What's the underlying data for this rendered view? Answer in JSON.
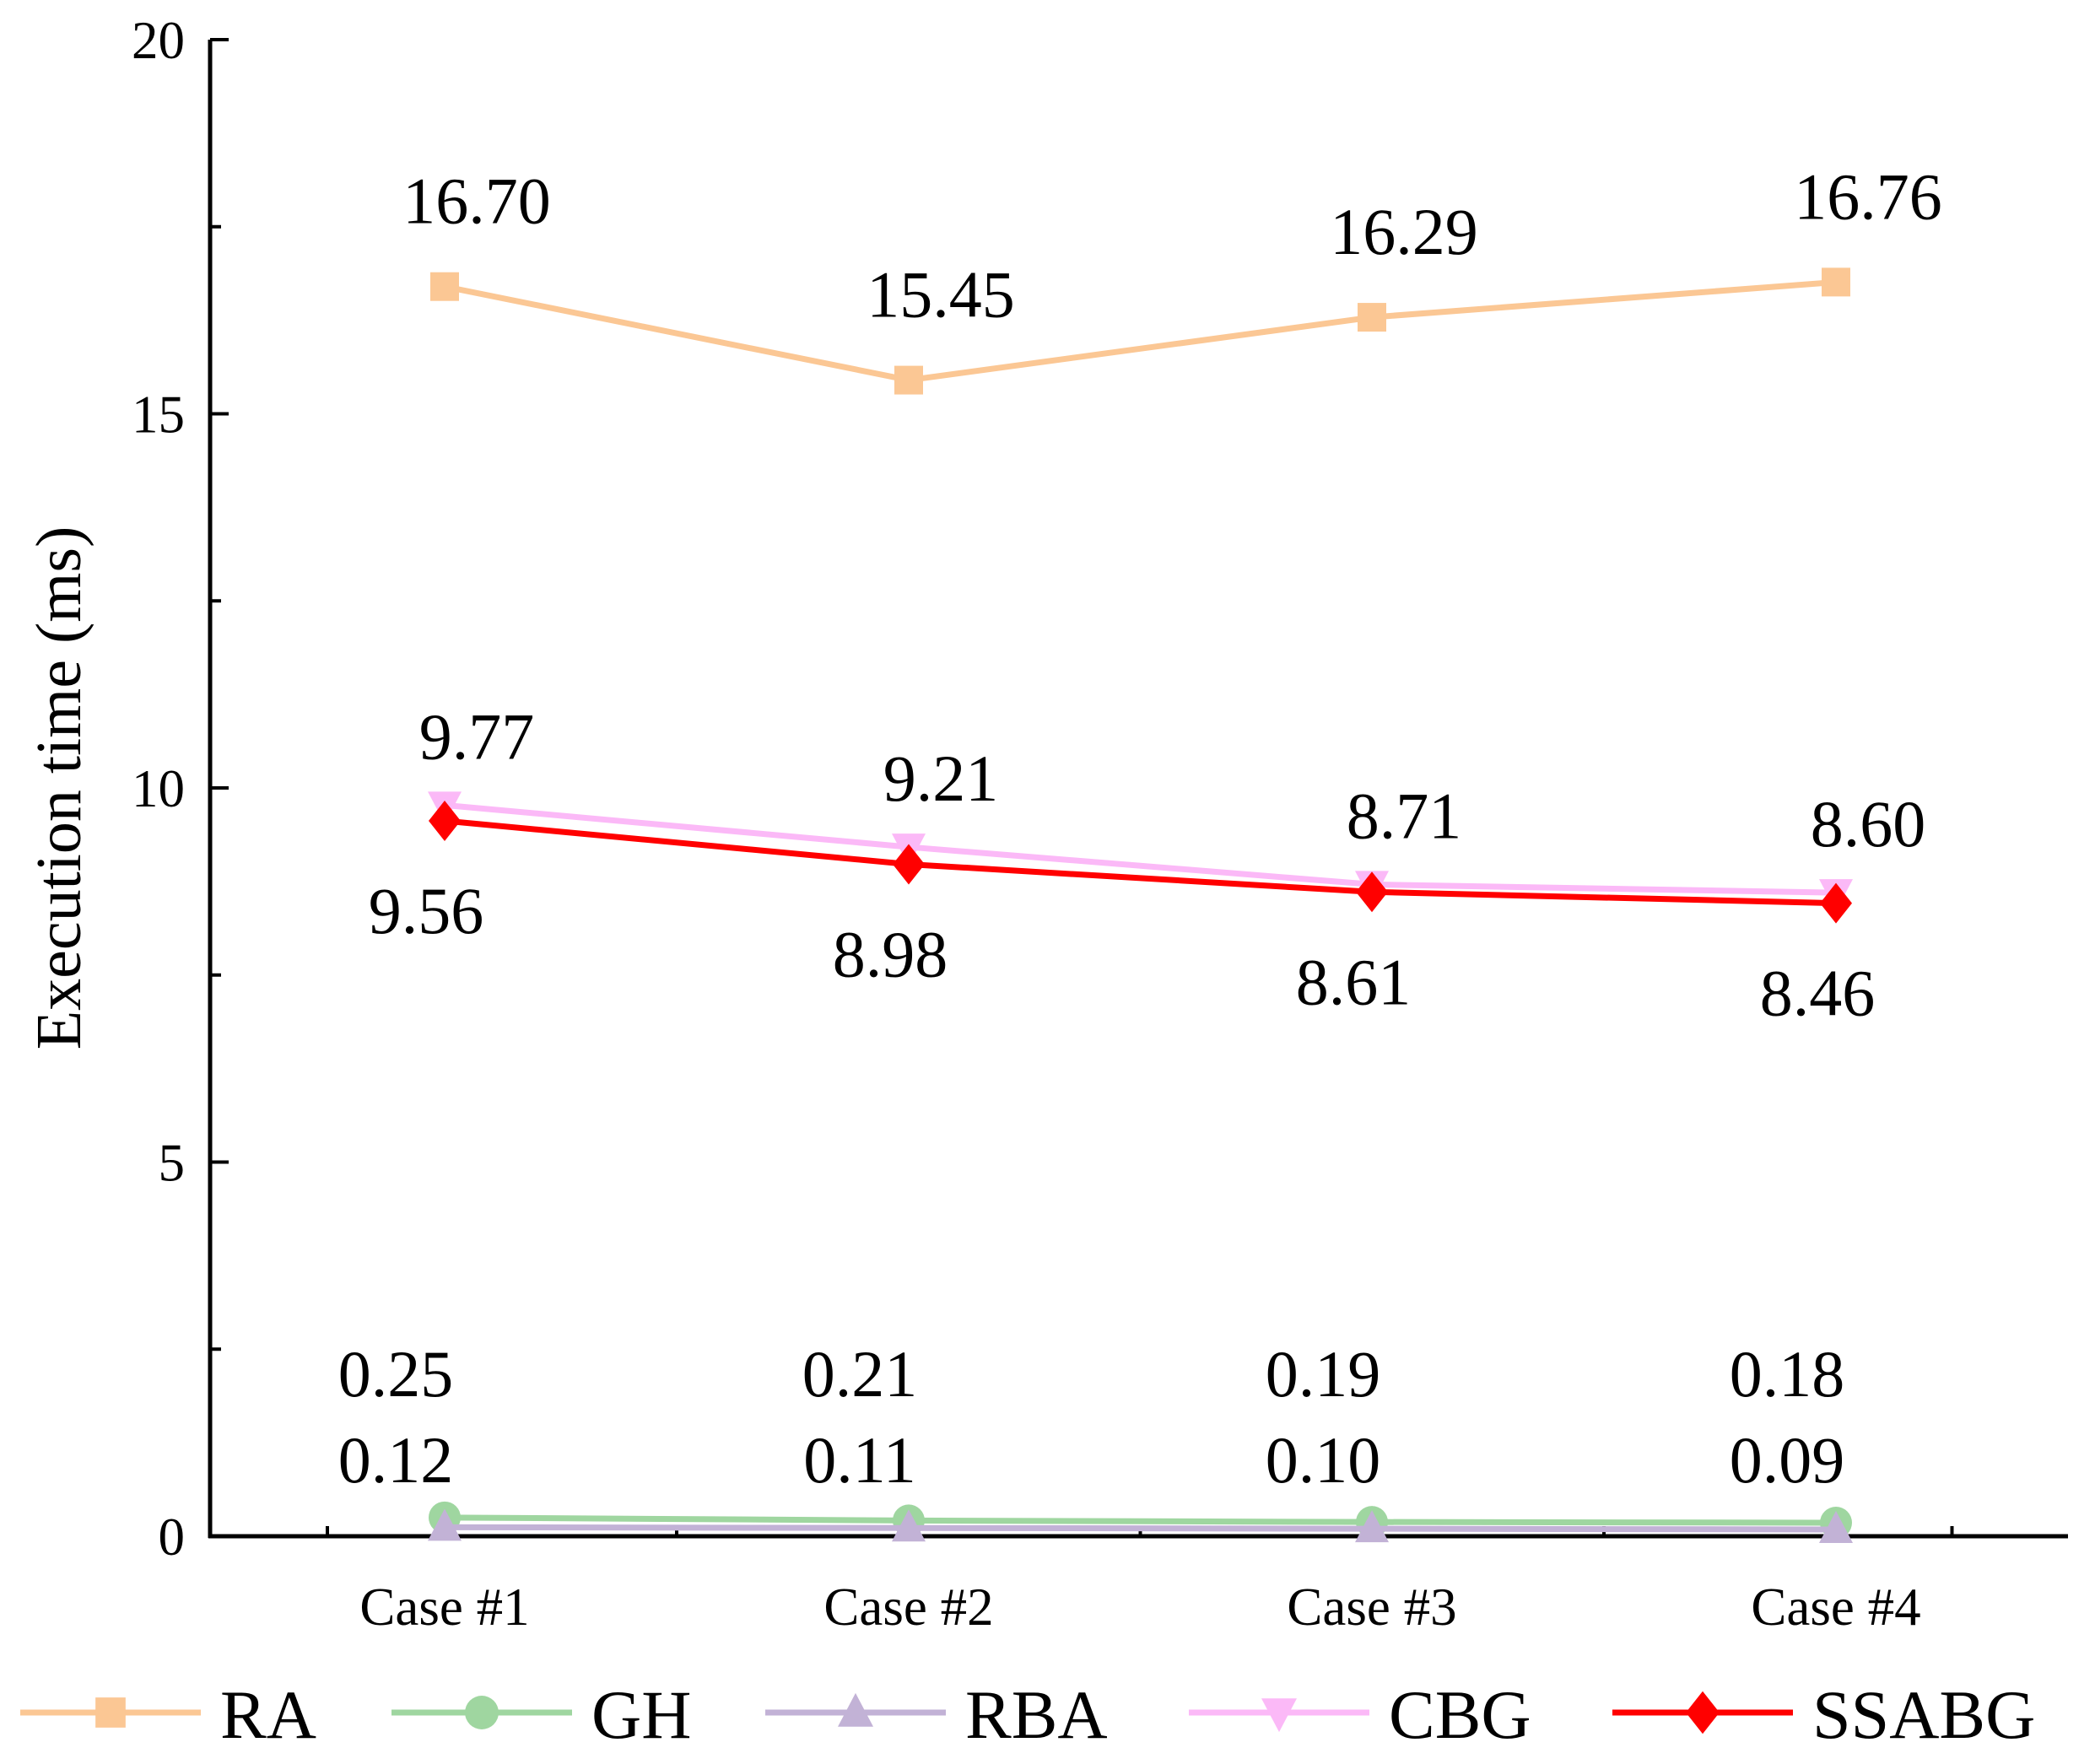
{
  "chart_data": {
    "type": "line",
    "title": "",
    "xlabel": "",
    "ylabel": "Execution time (ms)",
    "ylim": [
      0,
      20
    ],
    "yticks": [
      "0",
      "5",
      "10",
      "15",
      "20"
    ],
    "categories": [
      "Case #1",
      "Case #2",
      "Case #3",
      "Case #4"
    ],
    "legend_position": "bottom",
    "grid": false,
    "series": [
      {
        "name": "RA",
        "color": "#FBC794",
        "marker": "square",
        "values": [
          16.7,
          15.45,
          16.29,
          16.76
        ],
        "labels": [
          "16.70",
          "15.45",
          "16.29",
          "16.76"
        ],
        "label_side": "above"
      },
      {
        "name": "GH",
        "color": "#9FD6A0",
        "marker": "circle",
        "values": [
          0.25,
          0.21,
          0.19,
          0.18
        ],
        "labels": [
          "0.25",
          "0.21",
          "0.19",
          "0.18"
        ],
        "label_side": "row-upper"
      },
      {
        "name": "RBA",
        "color": "#C2B2D6",
        "marker": "triangle-up",
        "values": [
          0.12,
          0.11,
          0.1,
          0.09
        ],
        "labels": [
          "0.12",
          "0.11",
          "0.10",
          "0.09"
        ],
        "label_side": "row-lower"
      },
      {
        "name": "CBG",
        "color": "#FBB9F7",
        "marker": "triangle-down",
        "values": [
          9.77,
          9.21,
          8.71,
          8.6
        ],
        "labels": [
          "9.77",
          "9.21",
          "8.71",
          "8.60"
        ],
        "label_side": "above"
      },
      {
        "name": "SSABG",
        "color": "#FF0000",
        "marker": "diamond",
        "values": [
          9.56,
          8.98,
          8.61,
          8.46
        ],
        "labels": [
          "9.56",
          "8.98",
          "8.61",
          "8.46"
        ],
        "label_side": "below"
      }
    ]
  }
}
